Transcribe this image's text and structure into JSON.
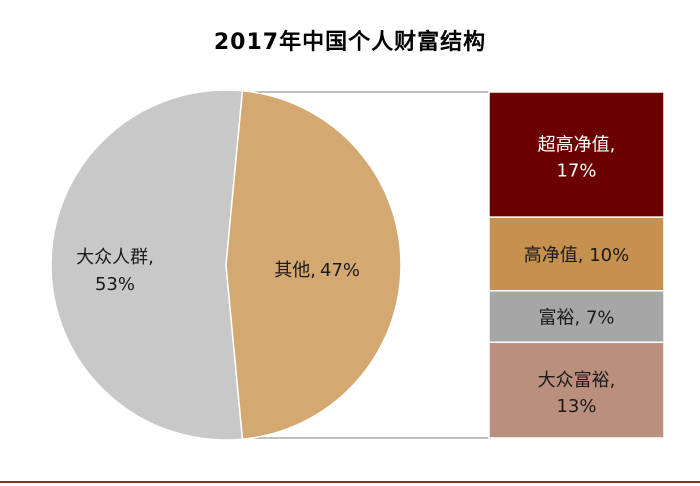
{
  "chart_data": [
    {
      "type": "pie",
      "title": "2017年中国个人财富结构",
      "slices": [
        {
          "label": "大众人群,",
          "pct_label": "53%",
          "value": 53,
          "color": "#c8c8c8"
        },
        {
          "label": "其他,",
          "pct_label": "47%",
          "value": 47,
          "color": "#d4a971"
        }
      ]
    },
    {
      "type": "bar",
      "stacked": true,
      "segments": [
        {
          "label": "超高净值,",
          "pct_label": "17%",
          "value": 17,
          "color": "#6b0000",
          "text_color": "#ffffff"
        },
        {
          "label": "高净值,",
          "pct_label": "10%",
          "value": 10,
          "color": "#c6914f",
          "text_color": "#1a1a1a"
        },
        {
          "label": "富裕,",
          "pct_label": "7%",
          "value": 7,
          "color": "#a6a6a6",
          "text_color": "#1a1a1a"
        },
        {
          "label": "大众富裕,",
          "pct_label": "13%",
          "value": 13,
          "color": "#bb8f7e",
          "text_color": "#1a1a1a"
        }
      ]
    }
  ]
}
